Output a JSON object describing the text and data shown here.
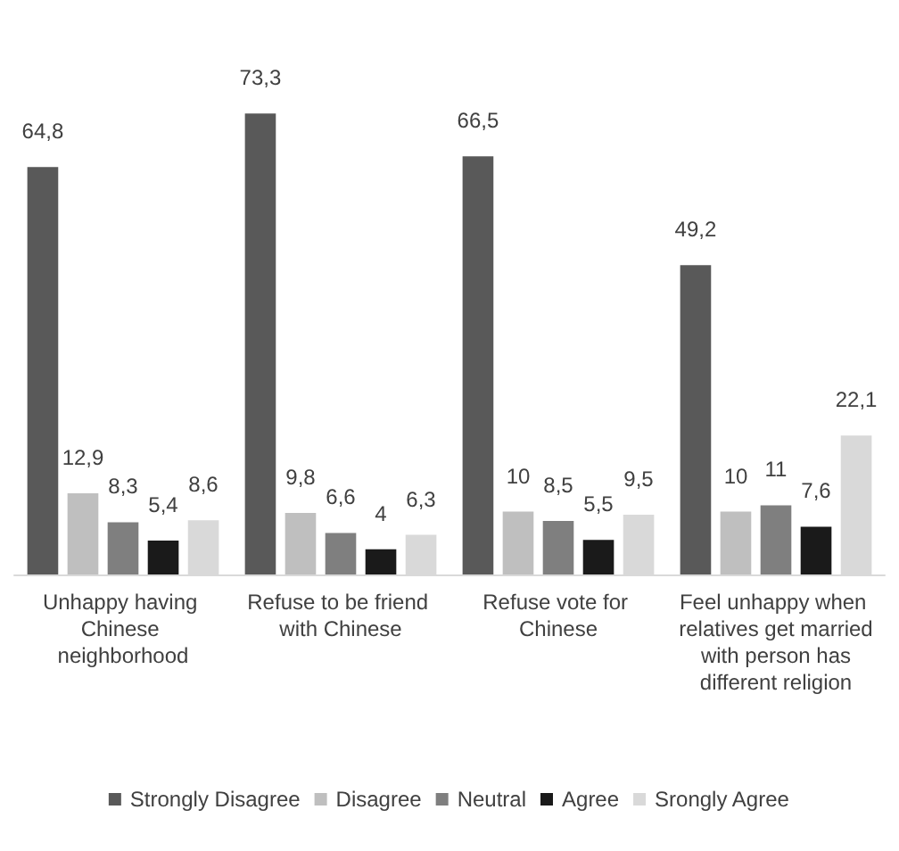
{
  "chart_data": {
    "type": "bar",
    "categories": [
      "Unhappy having Chinese neighborhood",
      "Refuse to be friend with Chinese",
      "Refuse vote for Chinese",
      "Feel unhappy when relatives get married with person has different religion"
    ],
    "series": [
      {
        "name": "Strongly Disagree",
        "color": "#595959",
        "values": [
          64.8,
          73.3,
          66.5,
          49.2
        ],
        "value_labels": [
          "64,8",
          "73,3",
          "66,5",
          "49,2"
        ]
      },
      {
        "name": "Disagree",
        "color": "#bfbfbf",
        "values": [
          12.9,
          9.8,
          10,
          10
        ],
        "value_labels": [
          "12,9",
          "9,8",
          "10",
          "10"
        ]
      },
      {
        "name": "Neutral",
        "color": "#7f7f7f",
        "values": [
          8.3,
          6.6,
          8.5,
          11
        ],
        "value_labels": [
          "8,3",
          "6,6",
          "8,5",
          "11"
        ]
      },
      {
        "name": "Agree",
        "color": "#1a1a1a",
        "values": [
          5.4,
          4,
          5.5,
          7.6
        ],
        "value_labels": [
          "5,4",
          "4",
          "5,5",
          "7,6"
        ]
      },
      {
        "name": "Srongly Agree",
        "color": "#d9d9d9",
        "values": [
          8.6,
          6.3,
          9.5,
          22.1
        ],
        "value_labels": [
          "8,6",
          "6,3",
          "9,5",
          "22,1"
        ]
      }
    ],
    "legend": "bottom"
  }
}
